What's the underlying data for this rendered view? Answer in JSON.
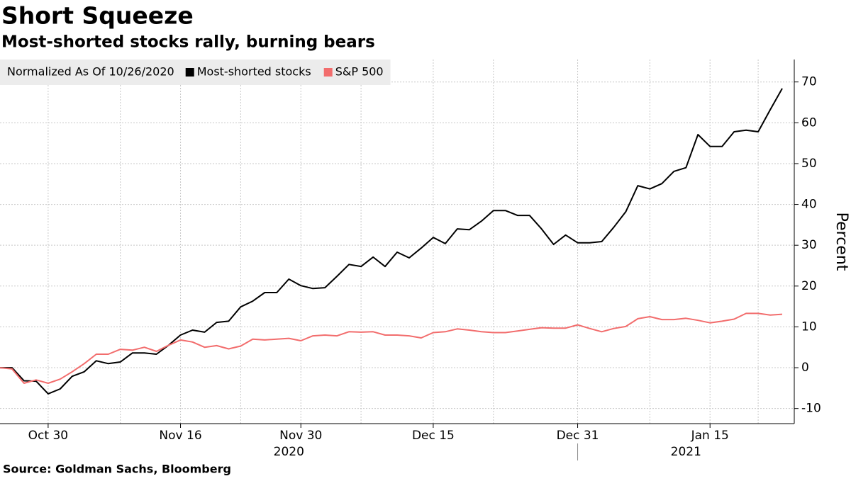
{
  "chart_data": {
    "type": "line",
    "title": "Short Squeeze",
    "subtitle": "Most-shorted stocks rally, burning bears",
    "source": "Source: Goldman Sachs, Bloomberg",
    "y_label": "Percent",
    "legend_title": "Normalized As Of 10/26/2020",
    "year_labels": [
      "2020",
      "2021"
    ],
    "x": [
      "2020-10-26",
      "2020-10-27",
      "2020-10-28",
      "2020-10-29",
      "2020-10-30",
      "2020-11-02",
      "2020-11-03",
      "2020-11-04",
      "2020-11-05",
      "2020-11-06",
      "2020-11-09",
      "2020-11-10",
      "2020-11-11",
      "2020-11-12",
      "2020-11-13",
      "2020-11-16",
      "2020-11-17",
      "2020-11-18",
      "2020-11-19",
      "2020-11-20",
      "2020-11-23",
      "2020-11-24",
      "2020-11-25",
      "2020-11-26",
      "2020-11-27",
      "2020-11-30",
      "2020-12-01",
      "2020-12-02",
      "2020-12-03",
      "2020-12-04",
      "2020-12-07",
      "2020-12-08",
      "2020-12-09",
      "2020-12-10",
      "2020-12-11",
      "2020-12-14",
      "2020-12-15",
      "2020-12-16",
      "2020-12-17",
      "2020-12-18",
      "2020-12-21",
      "2020-12-22",
      "2020-12-23",
      "2020-12-24",
      "2020-12-25",
      "2020-12-28",
      "2020-12-29",
      "2020-12-30",
      "2020-12-31",
      "2021-01-01",
      "2021-01-04",
      "2021-01-05",
      "2021-01-06",
      "2021-01-07",
      "2021-01-08",
      "2021-01-11",
      "2021-01-12",
      "2021-01-13",
      "2021-01-14",
      "2021-01-15",
      "2021-01-18",
      "2021-01-19",
      "2021-01-20",
      "2021-01-21",
      "2021-01-22",
      "2021-01-25"
    ],
    "series": [
      {
        "name": "Most-shorted stocks",
        "color": "#000000",
        "values": [
          0,
          0,
          -3.2,
          -3.3,
          -6.4,
          -5.2,
          -2.1,
          -1,
          1.7,
          1,
          1.4,
          3.6,
          3.6,
          3.3,
          5.5,
          8,
          9.2,
          8.7,
          11.1,
          11.4,
          14.9,
          16.3,
          18.4,
          18.4,
          21.7,
          20.1,
          19.4,
          19.6,
          22.4,
          25.3,
          24.8,
          27.1,
          24.8,
          28.3,
          26.9,
          29.3,
          31.9,
          30.4,
          34,
          33.8,
          35.9,
          38.5,
          38.5,
          37.3,
          37.3,
          34,
          30.2,
          32.5,
          30.6,
          30.6,
          30.9,
          34.4,
          38.2,
          44.6,
          43.8,
          45.1,
          48.1,
          49,
          57.1,
          54.2,
          54.2,
          57.8,
          58.2,
          57.8,
          63.2,
          68.4
        ]
      },
      {
        "name": "S&P 500",
        "color": "#f26d6d",
        "values": [
          0,
          -0.3,
          -3.8,
          -3,
          -3.8,
          -2.8,
          -1,
          1,
          3.3,
          3.3,
          4.5,
          4.3,
          5,
          4,
          5.5,
          6.8,
          6.3,
          5,
          5.4,
          4.6,
          5.3,
          7,
          6.8,
          7,
          7.2,
          6.6,
          7.8,
          8,
          7.8,
          8.8,
          8.7,
          8.8,
          8,
          8,
          7.8,
          7.3,
          8.6,
          8.8,
          9.5,
          9.2,
          8.8,
          8.6,
          8.6,
          9,
          9.4,
          9.8,
          9.7,
          9.7,
          10.5,
          9.6,
          8.8,
          9.6,
          10.1,
          12,
          12.5,
          11.8,
          11.8,
          12.1,
          11.6,
          11,
          11.4,
          11.9,
          13.3,
          13.3,
          12.9,
          13.1
        ]
      }
    ],
    "xlim": [
      "2020-10-26",
      "2021-01-26"
    ],
    "xticks": [
      {
        "value": "2020-10-30",
        "label": "Oct 30"
      },
      {
        "value": "2020-11-16",
        "label": "Nov 16"
      },
      {
        "value": "2020-11-30",
        "label": "Nov 30"
      },
      {
        "value": "2020-12-15",
        "label": "Dec 15"
      },
      {
        "value": "2020-12-31",
        "label": "Dec 31"
      },
      {
        "value": "2021-01-15",
        "label": "Jan 15"
      }
    ],
    "xminorticks": [
      "2020-11-09",
      "2020-11-23",
      "2020-12-07",
      "2020-12-22",
      "2021-01-08",
      "2021-01-21"
    ],
    "ylim": [
      -13.7,
      75.5
    ],
    "yticks": [
      -10,
      0,
      10,
      20,
      30,
      40,
      50,
      60,
      70
    ],
    "grid": true
  }
}
